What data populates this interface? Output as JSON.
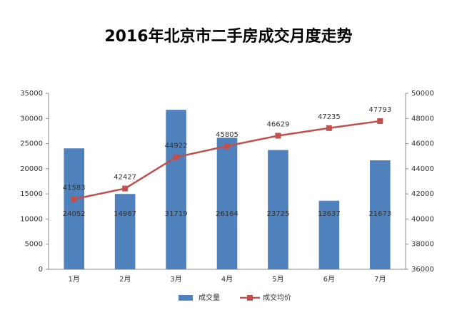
{
  "chart_data": {
    "type": "bar",
    "title": "2016年北京市二手房成交月度走势",
    "categories": [
      "1月",
      "2月",
      "3月",
      "4月",
      "5月",
      "6月",
      "7月"
    ],
    "series": [
      {
        "name": "成交量",
        "type": "bar",
        "color": "#4f81bd",
        "values": [
          24052,
          14987,
          31719,
          26164,
          23725,
          13637,
          21673
        ]
      },
      {
        "name": "成交均价",
        "type": "line",
        "axis": "y2",
        "color": "#c0504d",
        "values": [
          41583,
          42427,
          44922,
          45805,
          46629,
          47235,
          47793
        ]
      }
    ],
    "ylim": [
      0,
      35000
    ],
    "yticks": [
      0,
      5000,
      10000,
      15000,
      20000,
      25000,
      30000,
      35000
    ],
    "y2lim": [
      36000,
      50000
    ],
    "y2ticks": [
      36000,
      38000,
      40000,
      42000,
      44000,
      46000,
      48000,
      50000
    ],
    "grid": false,
    "legend": "bottom"
  }
}
